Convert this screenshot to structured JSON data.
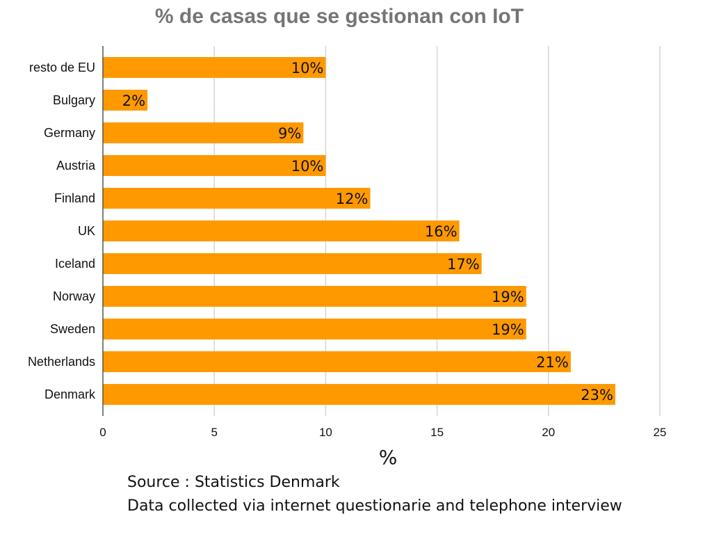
{
  "chart_data": {
    "type": "bar",
    "orientation": "horizontal",
    "title": "% de casas que se gestionan con IoT",
    "xlabel": "%",
    "ylabel": "",
    "xlim": [
      0,
      25
    ],
    "x_ticks": [
      "0",
      "5",
      "10",
      "15",
      "20",
      "25"
    ],
    "grid": true,
    "bar_color": "#FF9900",
    "categories": [
      "resto de EU",
      "Bulgary",
      "Germany",
      "Austria",
      "Finland",
      "UK",
      "Iceland",
      "Norway",
      "Sweden",
      "Netherlands",
      "Denmark"
    ],
    "values": [
      10,
      2,
      9,
      10,
      12,
      16,
      17,
      19,
      19,
      21,
      23
    ],
    "data_labels": [
      "10%",
      "2%",
      "9%",
      "10%",
      "12%",
      "16%",
      "17%",
      "19%",
      "19%",
      "21%",
      "23%"
    ]
  },
  "notes": {
    "source": "Source : Statistics Denmark",
    "method": "Data collected via internet questionarie and telephone interview"
  }
}
